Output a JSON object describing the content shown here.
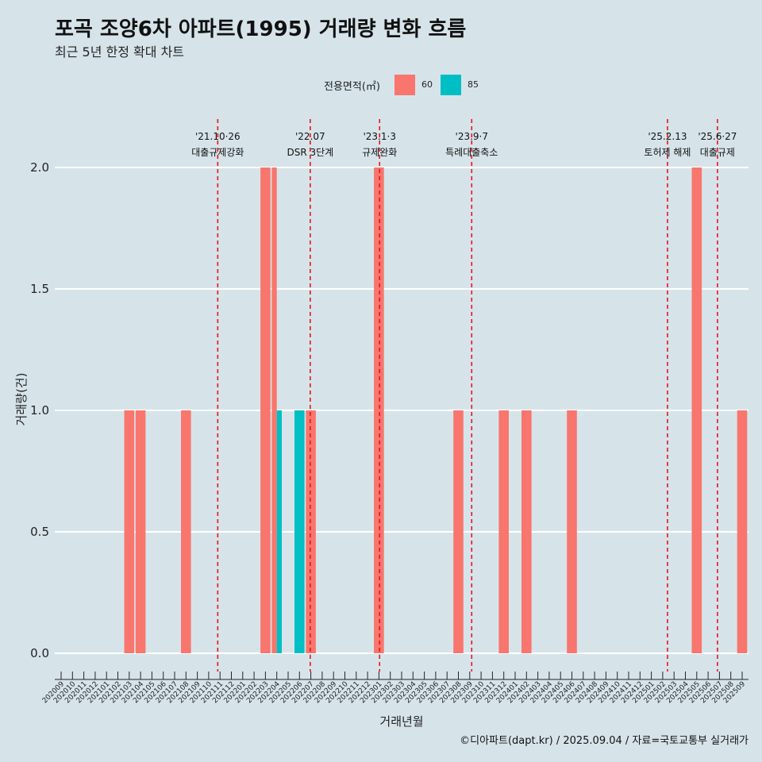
{
  "page": {
    "title": "포곡 조양6차 아파트(1995) 거래량 변화 흐름",
    "subtitle": "최근 5년 한정 확대 차트",
    "caption": "©디아파트(dapt.kr) / 2025.09.04 / 자료=국토교통부 실거래가"
  },
  "legend": {
    "title": "전용면적(㎡)",
    "items": [
      {
        "label": "60",
        "color": "#f8766d"
      },
      {
        "label": "85",
        "color": "#00bfc4"
      }
    ]
  },
  "chart_data": {
    "type": "bar",
    "title": "포곡 조양6차 아파트(1995) 거래량 변화 흐름",
    "subtitle": "최근 5년 한정 확대 차트",
    "xlabel": "거래년월",
    "ylabel": "거래량(건)",
    "ylim": [
      0,
      2
    ],
    "yticks": [
      "0.0",
      "0.5",
      "1.0",
      "1.5",
      "2.0"
    ],
    "grid": true,
    "legend_position": "top",
    "categories": [
      "202009",
      "202010",
      "202011",
      "202012",
      "202101",
      "202102",
      "202103",
      "202104",
      "202105",
      "202106",
      "202107",
      "202108",
      "202109",
      "202110",
      "202111",
      "202112",
      "202201",
      "202202",
      "202203",
      "202204",
      "202205",
      "202206",
      "202207",
      "202208",
      "202209",
      "202210",
      "202211",
      "202212",
      "202301",
      "202302",
      "202303",
      "202304",
      "202305",
      "202306",
      "202307",
      "202308",
      "202309",
      "202310",
      "202311",
      "202312",
      "202401",
      "202402",
      "202403",
      "202404",
      "202405",
      "202406",
      "202407",
      "202408",
      "202409",
      "202410",
      "202411",
      "202412",
      "202501",
      "202502",
      "202503",
      "202504",
      "202505",
      "202506",
      "202507",
      "202508",
      "202509"
    ],
    "series": [
      {
        "name": "60",
        "color": "#f8766d",
        "values": [
          0,
          0,
          0,
          0,
          0,
          0,
          1,
          1,
          0,
          0,
          0,
          1,
          0,
          0,
          0,
          0,
          0,
          0,
          2,
          2,
          0,
          0,
          1,
          0,
          0,
          0,
          0,
          0,
          2,
          0,
          0,
          0,
          0,
          0,
          0,
          1,
          0,
          0,
          0,
          1,
          0,
          1,
          0,
          0,
          0,
          1,
          0,
          0,
          0,
          0,
          0,
          0,
          0,
          0,
          0,
          0,
          2,
          0,
          0,
          0,
          1
        ]
      },
      {
        "name": "85",
        "color": "#00bfc4",
        "values": [
          0,
          0,
          0,
          0,
          0,
          0,
          0,
          0,
          0,
          0,
          0,
          0,
          0,
          0,
          0,
          0,
          0,
          0,
          0,
          1,
          0,
          1,
          0,
          0,
          0,
          0,
          0,
          0,
          0,
          0,
          0,
          0,
          0,
          0,
          0,
          0,
          0,
          0,
          0,
          0,
          0,
          0,
          0,
          0,
          0,
          0,
          0,
          0,
          0,
          0,
          0,
          0,
          0,
          0,
          0,
          0,
          0,
          0,
          0,
          0,
          0
        ]
      }
    ],
    "annotations": [
      {
        "date": "2021-10-26",
        "label_top": "'21.10·26",
        "label_bottom": "대출규제강화"
      },
      {
        "date": "2022-07-01",
        "label_top": "'22.07",
        "label_bottom": "DSR 3단계"
      },
      {
        "date": "2023-01-03",
        "label_top": "'23.1·3",
        "label_bottom": "규제완화"
      },
      {
        "date": "2023-09-07",
        "label_top": "'23.9·7",
        "label_bottom": "특례대출축소"
      },
      {
        "date": "2025-02-13",
        "label_top": "'25.2.13",
        "label_bottom": "토허제 해제"
      },
      {
        "date": "2025-06-27",
        "label_top": "'25.6·27",
        "label_bottom": "대출규제"
      }
    ]
  }
}
